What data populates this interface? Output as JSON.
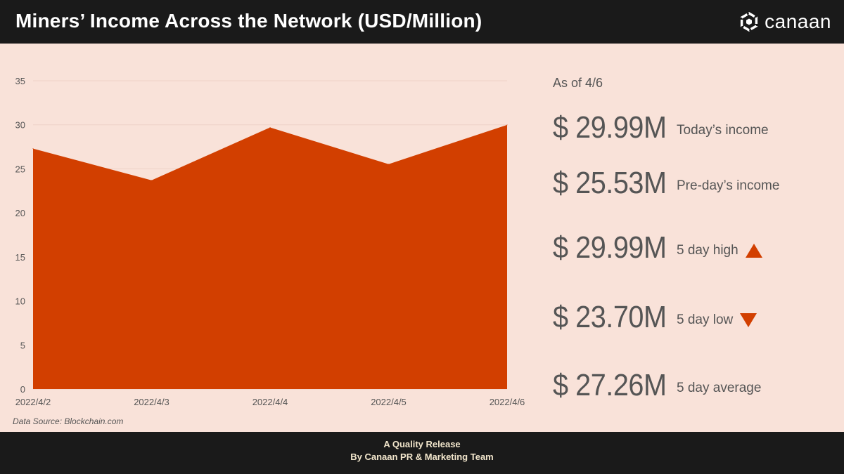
{
  "header": {
    "title": "Miners’ Income Across the Network (USD/Million)",
    "brand": "canaan"
  },
  "stats": {
    "as_of": "As of 4/6",
    "items": [
      {
        "value": "$ 29.99M",
        "label": "Today’s income"
      },
      {
        "value": "$ 25.53M",
        "label": "Pre-day’s income"
      },
      {
        "value": "$ 29.99M",
        "label": "5 day high",
        "icon": "triangle-up-icon"
      },
      {
        "value": "$ 23.70M",
        "label": "5 day low",
        "icon": "triangle-down-icon"
      },
      {
        "value": "$ 27.26M",
        "label": "5 day average"
      }
    ]
  },
  "source": "Data Source: Blockchain.com",
  "footer": {
    "line1": "A Quality Release",
    "line2": "By Canaan PR & Marketing Team"
  },
  "colors": {
    "area": "#d23f00",
    "panel_background": "#f9e2d9",
    "header_background": "#1a1a1a",
    "text_gray": "#555555",
    "gridline": "#eed2c8"
  },
  "chart_data": {
    "type": "area",
    "x": [
      "2022/4/2",
      "2022/4/3",
      "2022/4/4",
      "2022/4/5",
      "2022/4/6"
    ],
    "series": [
      {
        "values": [
          27.3,
          23.7,
          29.7,
          25.53,
          29.99
        ]
      }
    ],
    "yticks": [
      0,
      5,
      10,
      15,
      20,
      25,
      30,
      35
    ],
    "ylim": [
      0,
      35
    ],
    "grid": true,
    "legend": "none"
  }
}
